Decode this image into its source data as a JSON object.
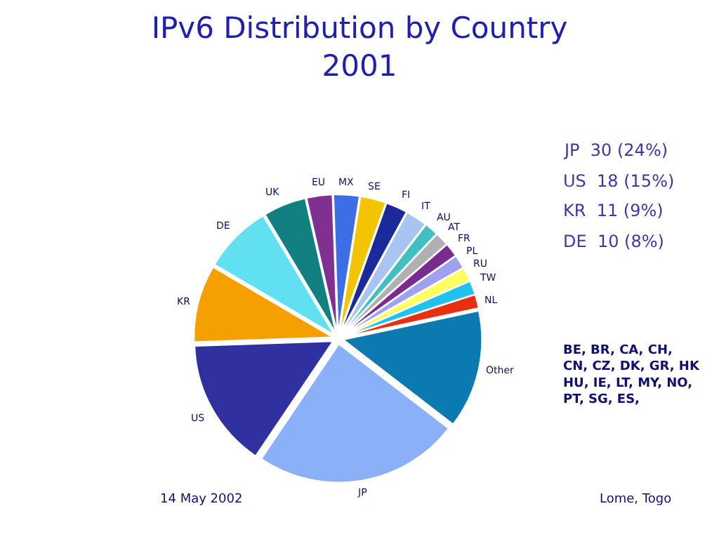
{
  "chart_data": {
    "type": "pie",
    "title": "IPv6 Distribution by Country\n2001",
    "categories": [
      "MX",
      "SE",
      "FI",
      "IT",
      "AU",
      "AT",
      "FR",
      "PL",
      "RU",
      "TW",
      "NL",
      "Other",
      "JP",
      "US",
      "KR",
      "DE",
      "UK",
      "EU"
    ],
    "values": [
      3,
      3,
      2.5,
      2.5,
      1.6,
      1.6,
      1.6,
      1.6,
      1.6,
      1.6,
      1.6,
      13.8,
      24,
      15,
      9,
      8,
      5,
      3
    ],
    "colors": [
      "#3d6ee6",
      "#f5c400",
      "#1a2a9a",
      "#a8c4f0",
      "#40c0c0",
      "#b0b0b0",
      "#7a2a90",
      "#a0a0f0",
      "#ffff60",
      "#20c0f0",
      "#e83010",
      "#0a7ab0",
      "#8ab0f8",
      "#3030a0",
      "#f5a000",
      "#60e0f0",
      "#108080",
      "#803090"
    ],
    "legend": false,
    "annotations": [
      "JP  30 (24%)",
      "US  18 (15%)",
      "KR  11 (9%)",
      "DE  10 (8%)",
      "BE, BR, CA, CH,\nCN, CZ, DK, GR, HK\nHU, IE, LT, MY, NO,\nPT, SG, ES,",
      "14 May 2002",
      "Lome, Togo"
    ]
  }
}
